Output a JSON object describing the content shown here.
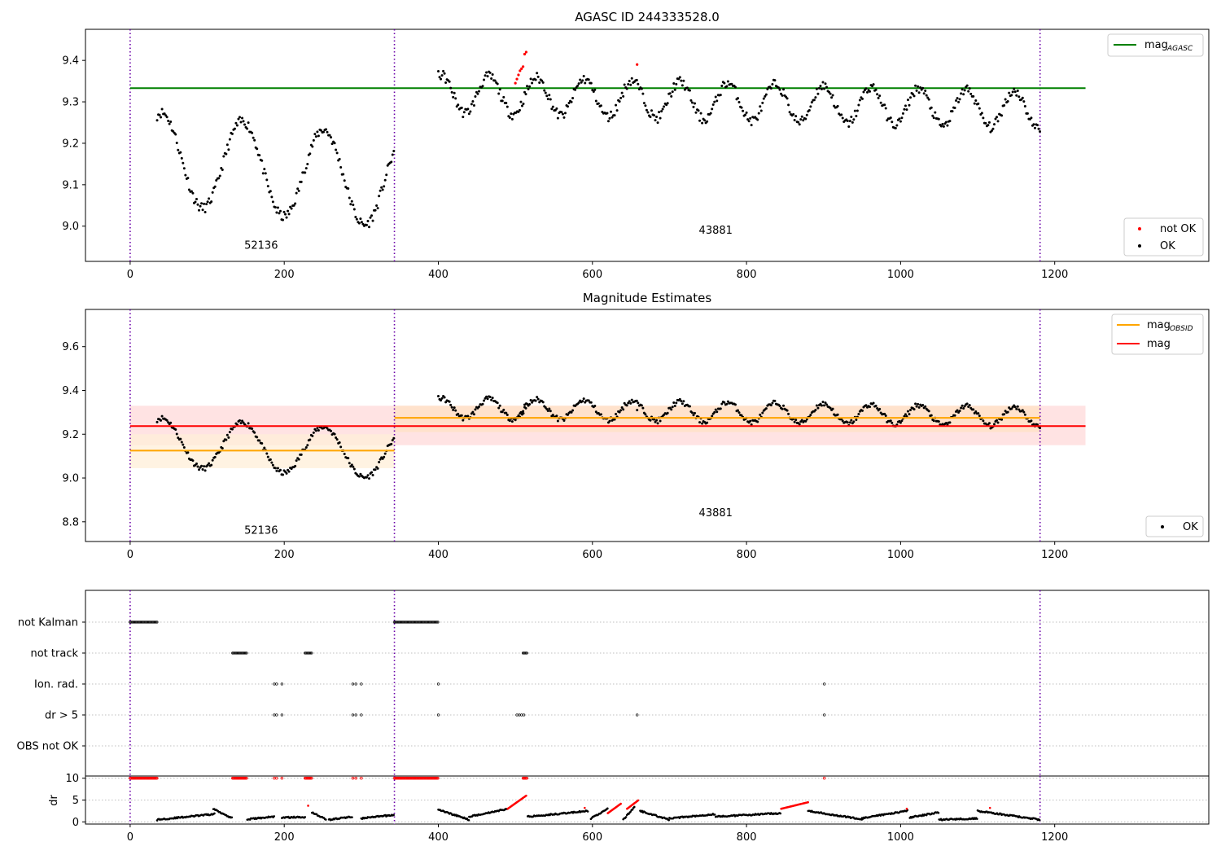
{
  "chart_data": [
    {
      "panel": "top",
      "type": "scatter",
      "title": "AGASC ID 244333528.0",
      "xlabel": "",
      "ylabel": "",
      "xlim": [
        -58,
        1400
      ],
      "ylim": [
        8.915,
        9.475
      ],
      "xticks": [
        0,
        200,
        400,
        600,
        800,
        1000,
        1200
      ],
      "yticks": [
        9.0,
        9.1,
        9.2,
        9.3,
        9.4
      ],
      "ytick_labels": [
        "9.0",
        "9.1",
        "9.2",
        "9.3",
        "9.4"
      ],
      "grid": false,
      "vlines": [
        0,
        343,
        1181
      ],
      "obsid_labels": [
        {
          "text": "52136",
          "x": 170,
          "y": 8.945
        },
        {
          "text": "43881",
          "x": 760,
          "y": 8.982
        }
      ],
      "hlines": [
        {
          "name": "mag_AGASC",
          "y": 9.333,
          "x0": 0,
          "x1": 1240,
          "color": "#008000"
        }
      ],
      "segments": [
        {
          "x0": 35,
          "x1": 343,
          "y0": 9.165,
          "y1": 9.105,
          "amp": 0.11,
          "period": 105,
          "noise": 0.012
        },
        {
          "x0": 400,
          "x1": 1181,
          "y0": 9.32,
          "y1": 9.28,
          "amp": 0.045,
          "period": 62,
          "noise": 0.012
        }
      ],
      "red_points": [
        {
          "x": 500,
          "y": 9.345
        },
        {
          "x": 502,
          "y": 9.355
        },
        {
          "x": 504,
          "y": 9.365
        },
        {
          "x": 506,
          "y": 9.375
        },
        {
          "x": 508,
          "y": 9.38
        },
        {
          "x": 510,
          "y": 9.385
        },
        {
          "x": 512,
          "y": 9.415
        },
        {
          "x": 514,
          "y": 9.42
        },
        {
          "x": 658,
          "y": 9.39
        }
      ],
      "legend_lines": {
        "position": "upper right",
        "entries": [
          {
            "label": "mag",
            "sub": "AGASC",
            "color": "#008000"
          }
        ]
      },
      "legend_points": {
        "position": "lower right",
        "entries": [
          {
            "label": "not OK",
            "color": "#ff0000"
          },
          {
            "label": "OK",
            "color": "#000000"
          }
        ]
      }
    },
    {
      "panel": "middle",
      "type": "scatter",
      "title": "Magnitude Estimates",
      "xlabel": "",
      "ylabel": "",
      "xlim": [
        -58,
        1400
      ],
      "ylim": [
        8.71,
        9.77
      ],
      "xticks": [
        0,
        200,
        400,
        600,
        800,
        1000,
        1200
      ],
      "yticks": [
        8.8,
        9.0,
        9.2,
        9.4,
        9.6
      ],
      "ytick_labels": [
        "8.8",
        "9.0",
        "9.2",
        "9.4",
        "9.6"
      ],
      "grid": false,
      "vlines": [
        0,
        343,
        1181
      ],
      "obsid_labels": [
        {
          "text": "52136",
          "x": 170,
          "y": 8.745
        },
        {
          "text": "43881",
          "x": 760,
          "y": 8.825
        }
      ],
      "bands": [
        {
          "x0": 0,
          "x1": 1240,
          "y0": 9.15,
          "y1": 9.33,
          "color": "#ffdada"
        },
        {
          "x0": 0,
          "x1": 343,
          "y0": 9.045,
          "y1": 9.2,
          "color": "#ffefd8"
        },
        {
          "x0": 343,
          "x1": 1181,
          "y0": 9.21,
          "y1": 9.33,
          "color": "#ffe2c4"
        }
      ],
      "hlines": [
        {
          "name": "mag_OBSID",
          "y": 9.125,
          "x0": 0,
          "x1": 343,
          "color": "#ffa500"
        },
        {
          "name": "mag_OBSID",
          "y": 9.275,
          "x0": 343,
          "x1": 1181,
          "color": "#ffa500"
        },
        {
          "name": "mag",
          "y": 9.237,
          "x0": 0,
          "x1": 1240,
          "color": "#ff0000"
        }
      ],
      "legend_lines": {
        "position": "upper right",
        "entries": [
          {
            "label": "mag",
            "sub": "OBSID",
            "color": "#ffa500"
          },
          {
            "label": "mag",
            "sub": "",
            "color": "#ff0000"
          }
        ]
      },
      "legend_points": {
        "position": "lower right",
        "entries": [
          {
            "label": "OK",
            "color": "#000000"
          }
        ]
      }
    },
    {
      "panel": "flags",
      "type": "scatter",
      "xlim": [
        -58,
        1400
      ],
      "categories": [
        "not Kalman",
        "not track",
        "Ion. rad.",
        "dr > 5",
        "OBS not OK"
      ],
      "grid": true,
      "vlines": [
        0,
        343,
        1181
      ],
      "flag_ranges": [
        {
          "row": "not Kalman",
          "x0": 0,
          "x1": 35
        },
        {
          "row": "not Kalman",
          "x0": 343,
          "x1": 400
        },
        {
          "row": "not track",
          "x0": 133,
          "x1": 152
        },
        {
          "row": "not track",
          "x0": 227,
          "x1": 236
        },
        {
          "row": "not track",
          "x0": 510,
          "x1": 516
        }
      ],
      "flag_points": [
        {
          "row": "Ion. rad.",
          "x": [
            187,
            190,
            197,
            289,
            293,
            300,
            400,
            901
          ]
        },
        {
          "row": "dr > 5",
          "x": [
            187,
            190,
            197,
            289,
            293,
            300,
            400,
            502,
            505,
            508,
            511,
            658,
            901
          ]
        }
      ]
    },
    {
      "panel": "dr",
      "type": "scatter",
      "xlim": [
        -58,
        1400
      ],
      "ylim": [
        -0.5,
        10.5
      ],
      "ylabel": "dr",
      "xticks": [
        0,
        200,
        400,
        600,
        800,
        1000,
        1200
      ],
      "yticks": [
        0,
        5,
        10
      ],
      "ytick_labels": [
        "0",
        "5",
        "10"
      ],
      "grid": true,
      "vlines": [
        0,
        343,
        1181
      ],
      "dr_segments": [
        {
          "x0": 35,
          "x1": 110,
          "y0": 0.5,
          "y1": 1.8
        },
        {
          "x0": 108,
          "x1": 133,
          "y0": 3.0,
          "y1": 0.8
        },
        {
          "x0": 152,
          "x1": 187,
          "y0": 0.6,
          "y1": 1.2
        },
        {
          "x0": 197,
          "x1": 227,
          "y0": 1.0,
          "y1": 1.1
        },
        {
          "x0": 236,
          "x1": 255,
          "y0": 2.2,
          "y1": 0.5
        },
        {
          "x0": 258,
          "x1": 289,
          "y0": 0.5,
          "y1": 1.2
        },
        {
          "x0": 300,
          "x1": 343,
          "y0": 0.8,
          "y1": 1.6
        },
        {
          "x0": 400,
          "x1": 440,
          "y0": 2.8,
          "y1": 0.5
        },
        {
          "x0": 440,
          "x1": 490,
          "y0": 1.2,
          "y1": 3.0
        },
        {
          "x0": 516,
          "x1": 595,
          "y0": 1.2,
          "y1": 2.5
        },
        {
          "x0": 598,
          "x1": 620,
          "y0": 0.8,
          "y1": 3.0
        },
        {
          "x0": 640,
          "x1": 655,
          "y0": 0.5,
          "y1": 3.5
        },
        {
          "x0": 662,
          "x1": 700,
          "y0": 2.5,
          "y1": 0.5
        },
        {
          "x0": 700,
          "x1": 760,
          "y0": 0.8,
          "y1": 1.8
        },
        {
          "x0": 760,
          "x1": 845,
          "y0": 1.2,
          "y1": 2.0
        },
        {
          "x0": 880,
          "x1": 950,
          "y0": 2.5,
          "y1": 0.6
        },
        {
          "x0": 950,
          "x1": 1010,
          "y0": 0.8,
          "y1": 2.6
        },
        {
          "x0": 1012,
          "x1": 1050,
          "y0": 1.0,
          "y1": 2.2
        },
        {
          "x0": 1050,
          "x1": 1100,
          "y0": 0.5,
          "y1": 0.8
        },
        {
          "x0": 1100,
          "x1": 1181,
          "y0": 2.5,
          "y1": 0.5
        }
      ],
      "dr_red_segments": [
        {
          "x0": 490,
          "x1": 514,
          "y0": 3.0,
          "y1": 6.0
        },
        {
          "x0": 620,
          "x1": 638,
          "y0": 2.0,
          "y1": 4.3
        },
        {
          "x0": 645,
          "x1": 660,
          "y0": 3.0,
          "y1": 5.0
        },
        {
          "x0": 845,
          "x1": 880,
          "y0": 3.0,
          "y1": 4.5
        }
      ],
      "dr_red_points": [
        {
          "x": 231,
          "y": 3.7
        },
        {
          "x": 590,
          "y": 3.2
        },
        {
          "x": 1008,
          "y": 3.0
        },
        {
          "x": 1116,
          "y": 3.2
        }
      ],
      "red_top_ranges": [
        {
          "x0": 0,
          "x1": 35
        },
        {
          "x0": 133,
          "x1": 152
        },
        {
          "x0": 227,
          "x1": 236
        },
        {
          "x0": 343,
          "x1": 400
        },
        {
          "x0": 510,
          "x1": 516
        }
      ],
      "red_top_points": [
        187,
        190,
        197,
        289,
        293,
        300,
        901
      ]
    }
  ]
}
